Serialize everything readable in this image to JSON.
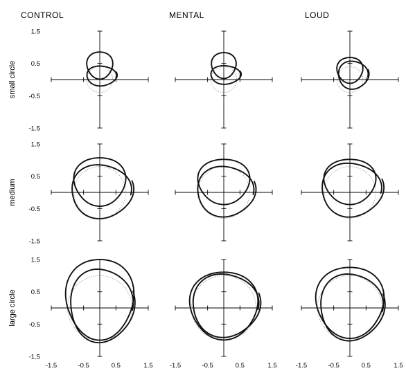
{
  "chart_data": {
    "type": "line",
    "panel_titles": [
      "CONTROL",
      "MENTAL",
      "LOUD"
    ],
    "row_labels": [
      "small circle",
      "medium",
      "large circle"
    ],
    "x_tick_labels": [
      "-1.5",
      "-0.5",
      "0.5",
      "1.5"
    ],
    "y_tick_labels": [
      "1.5",
      "0.5",
      "-0.5",
      "-1.5"
    ],
    "xlim": [
      -1.5,
      1.5
    ],
    "ylim": [
      -1.5,
      1.5
    ],
    "grid": false,
    "reference_style": "dotted gray circle",
    "colors": {
      "trace": "#111111",
      "reference": "#8c8c8c",
      "axis": "#000000"
    },
    "panels": [
      {
        "row": 0,
        "col": 0,
        "reference_radius": 0.4,
        "loops": [
          {
            "cx": 0.0,
            "cy": 0.45,
            "rx": 0.4,
            "ry": 0.42,
            "turn": 0
          },
          {
            "cx": 0.05,
            "cy": 0.12,
            "rx": 0.45,
            "ry": 0.3,
            "turn": 0.05
          }
        ]
      },
      {
        "row": 0,
        "col": 1,
        "reference_radius": 0.4,
        "loops": [
          {
            "cx": 0.0,
            "cy": 0.45,
            "rx": 0.38,
            "ry": 0.4,
            "turn": 0
          },
          {
            "cx": 0.05,
            "cy": 0.15,
            "rx": 0.45,
            "ry": 0.28,
            "turn": 0.05
          }
        ]
      },
      {
        "row": 0,
        "col": 2,
        "reference_radius": 0.4,
        "loops": [
          {
            "cx": 0.0,
            "cy": 0.3,
            "rx": 0.4,
            "ry": 0.4,
            "turn": 0
          },
          {
            "cx": 0.1,
            "cy": 0.15,
            "rx": 0.45,
            "ry": 0.42,
            "turn": 0.06
          }
        ]
      },
      {
        "row": 1,
        "col": 0,
        "reference_radius": 0.8,
        "loops": [
          {
            "cx": 0.0,
            "cy": 0.35,
            "rx": 0.8,
            "ry": 0.75,
            "turn": 0
          },
          {
            "cx": 0.05,
            "cy": 0.05,
            "rx": 0.9,
            "ry": 0.8,
            "turn": 0.08
          }
        ]
      },
      {
        "row": 1,
        "col": 1,
        "reference_radius": 0.8,
        "loops": [
          {
            "cx": 0.0,
            "cy": 0.35,
            "rx": 0.8,
            "ry": 0.7,
            "turn": 0
          },
          {
            "cx": 0.05,
            "cy": 0.05,
            "rx": 0.85,
            "ry": 0.75,
            "turn": 0.08
          }
        ]
      },
      {
        "row": 1,
        "col": 2,
        "reference_radius": 0.8,
        "loops": [
          {
            "cx": 0.0,
            "cy": 0.35,
            "rx": 0.8,
            "ry": 0.7,
            "turn": 0
          },
          {
            "cx": 0.05,
            "cy": 0.1,
            "rx": 0.9,
            "ry": 0.8,
            "turn": 0.08
          }
        ]
      },
      {
        "row": 2,
        "col": 0,
        "reference_radius": 1.0,
        "loops": [
          {
            "cx": 0.0,
            "cy": 0.3,
            "rx": 1.05,
            "ry": 1.25,
            "turn": 0
          },
          {
            "cx": 0.05,
            "cy": 0.1,
            "rx": 0.95,
            "ry": 1.1,
            "turn": 0.06
          }
        ]
      },
      {
        "row": 2,
        "col": 1,
        "reference_radius": 1.0,
        "loops": [
          {
            "cx": 0.0,
            "cy": 0.1,
            "rx": 1.05,
            "ry": 1.05,
            "turn": 0
          },
          {
            "cx": 0.05,
            "cy": 0.1,
            "rx": 1.0,
            "ry": 0.95,
            "turn": 0.06
          }
        ]
      },
      {
        "row": 2,
        "col": 2,
        "reference_radius": 1.0,
        "loops": [
          {
            "cx": 0.0,
            "cy": 0.2,
            "rx": 1.05,
            "ry": 1.1,
            "turn": 0
          },
          {
            "cx": 0.05,
            "cy": 0.05,
            "rx": 0.95,
            "ry": 1.0,
            "turn": 0.06
          }
        ]
      }
    ]
  }
}
